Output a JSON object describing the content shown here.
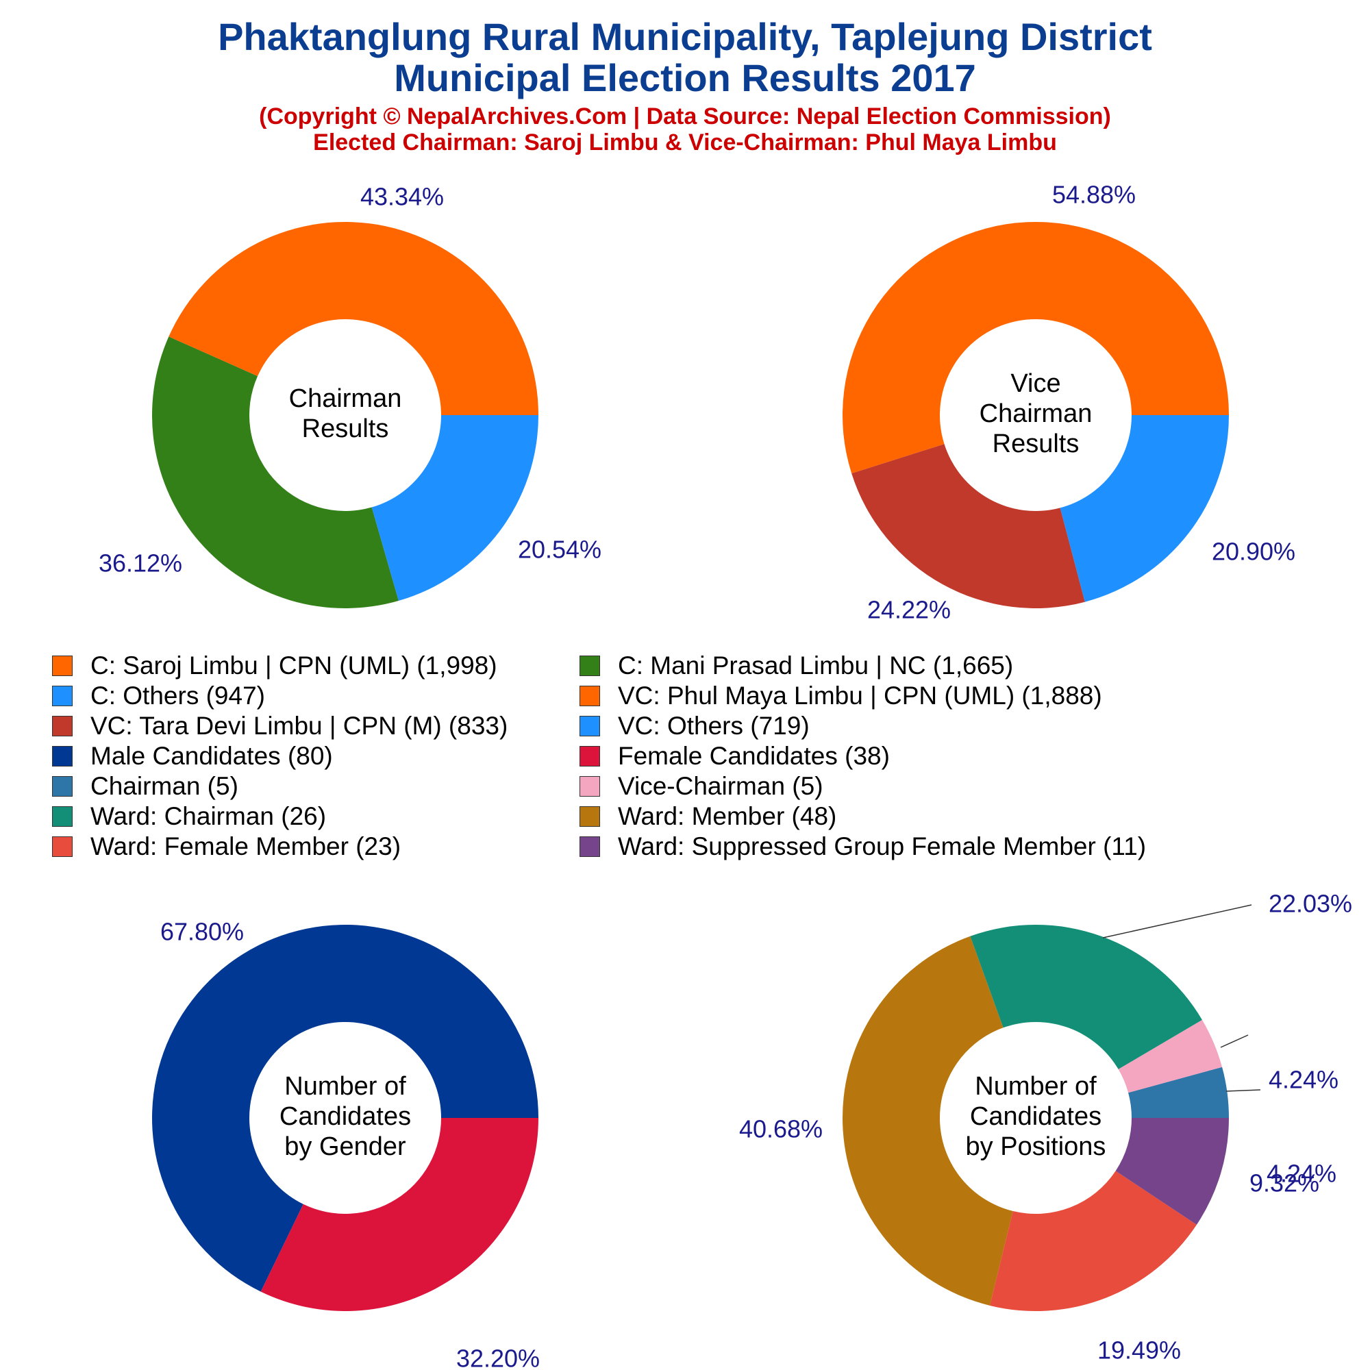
{
  "header": {
    "title_line1": "Phaktanglung Rural Municipality, Taplejung District",
    "title_line2": "Municipal Election Results 2017",
    "subtitle_line1": "(Copyright © NepalArchives.Com | Data Source: Nepal Election Commission)",
    "subtitle_line2": "Elected Chairman: Saroj Limbu & Vice-Chairman: Phul Maya Limbu"
  },
  "legend": [
    {
      "label": "C: Saroj Limbu | CPN (UML) (1,998)",
      "color": "#ff6600"
    },
    {
      "label": "C: Mani Prasad Limbu | NC (1,665)",
      "color": "#338018"
    },
    {
      "label": "C: Others (947)",
      "color": "#1e90ff"
    },
    {
      "label": "VC: Phul Maya Limbu | CPN (UML) (1,888)",
      "color": "#ff6600"
    },
    {
      "label": "VC: Tara Devi Limbu | CPN (M) (833)",
      "color": "#c0392b"
    },
    {
      "label": "VC: Others (719)",
      "color": "#1e90ff"
    },
    {
      "label": "Male Candidates (80)",
      "color": "#003893"
    },
    {
      "label": "Female Candidates (38)",
      "color": "#dc143c"
    },
    {
      "label": "Chairman (5)",
      "color": "#2e75a8"
    },
    {
      "label": "Vice-Chairman (5)",
      "color": "#f4a6c0"
    },
    {
      "label": "Ward: Chairman (26)",
      "color": "#148f77"
    },
    {
      "label": "Ward: Member (48)",
      "color": "#b8770e"
    },
    {
      "label": "Ward: Female Member (23)",
      "color": "#e74c3c"
    },
    {
      "label": "Ward: Suppressed Group Female Member (11)",
      "color": "#76448a"
    }
  ],
  "chart_data": [
    {
      "type": "pie",
      "center_label": [
        "Chairman",
        "Results"
      ],
      "slices": [
        {
          "name": "C: Saroj Limbu | CPN (UML)",
          "value": 1998,
          "pct_label": "43.34%",
          "color": "#ff6600"
        },
        {
          "name": "C: Mani Prasad Limbu | NC",
          "value": 1665,
          "pct_label": "36.12%",
          "color": "#338018"
        },
        {
          "name": "C: Others",
          "value": 947,
          "pct_label": "20.54%",
          "color": "#1e90ff"
        }
      ]
    },
    {
      "type": "pie",
      "center_label": [
        "Vice",
        "Chairman",
        "Results"
      ],
      "slices": [
        {
          "name": "VC: Phul Maya Limbu | CPN (UML)",
          "value": 1888,
          "pct_label": "54.88%",
          "color": "#ff6600"
        },
        {
          "name": "VC: Tara Devi Limbu | CPN (M)",
          "value": 833,
          "pct_label": "24.22%",
          "color": "#c0392b"
        },
        {
          "name": "VC: Others",
          "value": 719,
          "pct_label": "20.90%",
          "color": "#1e90ff"
        }
      ]
    },
    {
      "type": "pie",
      "center_label": [
        "Number of",
        "Candidates",
        "by Gender"
      ],
      "slices": [
        {
          "name": "Male Candidates",
          "value": 80,
          "pct_label": "67.80%",
          "color": "#003893"
        },
        {
          "name": "Female Candidates",
          "value": 38,
          "pct_label": "32.20%",
          "color": "#dc143c"
        }
      ]
    },
    {
      "type": "pie",
      "center_label": [
        "Number of",
        "Candidates",
        "by Positions"
      ],
      "slices": [
        {
          "name": "Chairman",
          "value": 5,
          "pct_label": "4.24%",
          "color": "#2e75a8"
        },
        {
          "name": "Vice-Chairman",
          "value": 5,
          "pct_label": "4.24%",
          "color": "#f4a6c0"
        },
        {
          "name": "Ward: Chairman",
          "value": 26,
          "pct_label": "22.03%",
          "color": "#148f77"
        },
        {
          "name": "Ward: Member",
          "value": 48,
          "pct_label": "40.68%",
          "color": "#b8770e"
        },
        {
          "name": "Ward: Female Member",
          "value": 23,
          "pct_label": "19.49%",
          "color": "#e74c3c"
        },
        {
          "name": "Ward: Suppressed Group Female Member",
          "value": 11,
          "pct_label": "9.32%",
          "color": "#76448a"
        }
      ]
    }
  ]
}
